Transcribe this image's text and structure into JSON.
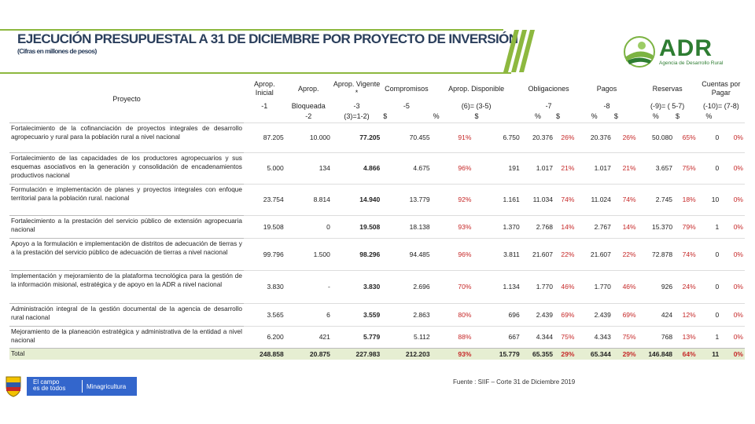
{
  "header": {
    "title": "EJECUCIÓN PRESUPUESTAL A 31 DE DICIEMBRE POR PROYECTO DE INVERSIÓN",
    "subtitle": "(Cifras en millones de pesos)"
  },
  "logo": {
    "name": "ADR",
    "tagline": "Agencia de Desarrollo Rural"
  },
  "columns": {
    "proyecto": "Proyecto",
    "aprop_inicial": "Aprop. Inicial",
    "aprop_bloq": "Aprop.",
    "aprop_vig": "Aprop. Vigente *",
    "compromisos": "Compromisos",
    "aprop_disp": "Aprop. Disponible",
    "obligaciones": "Obligaciones",
    "pagos": "Pagos",
    "reservas": "Reservas",
    "cuentas": "Cuentas por Pagar",
    "f_inicial": "-1",
    "f_bloq": "Bloqueada",
    "f_vig": "-3",
    "f_comp": "-5",
    "f_disp": "(6)= (3-5)",
    "f_oblig": "-7",
    "f_pagos": "-8",
    "f_res": "(-9)= ( 5-7)",
    "f_cxp": "(-10)= (7-8)",
    "f_bloq2": "-2",
    "f_vig2": "(3)=1-2)",
    "dollar": "$",
    "pct": "%"
  },
  "rows": [
    {
      "proyecto": "Fortalecimiento de la cofinanciación de proyectos integrales de desarrollo agropecuario y rural para la población rural a nivel nacional",
      "inicial": "87.205",
      "bloq": "10.000",
      "vig": "77.205",
      "comp": "70.455",
      "comp_pct": "91%",
      "disp": "6.750",
      "oblig": "20.376",
      "oblig_pct": "26%",
      "pagos": "20.376",
      "pagos_pct": "26%",
      "res": "50.080",
      "res_pct": "65%",
      "cxp": "0",
      "cxp_pct": "0%"
    },
    {
      "proyecto": "Fortalecimiento de las capacidades de los productores agropecuarios y sus esquemas asociativos en la generación y consolidación de encadenamientos productivos nacional",
      "inicial": "5.000",
      "bloq": "134",
      "vig": "4.866",
      "comp": "4.675",
      "comp_pct": "96%",
      "disp": "191",
      "oblig": "1.017",
      "oblig_pct": "21%",
      "pagos": "1.017",
      "pagos_pct": "21%",
      "res": "3.657",
      "res_pct": "75%",
      "cxp": "0",
      "cxp_pct": "0%"
    },
    {
      "proyecto": "Formulación e implementación de planes y proyectos integrales con enfoque territorial para la población rural. nacional",
      "inicial": "23.754",
      "bloq": "8.814",
      "vig": "14.940",
      "comp": "13.779",
      "comp_pct": "92%",
      "disp": "1.161",
      "oblig": "11.034",
      "oblig_pct": "74%",
      "pagos": "11.024",
      "pagos_pct": "74%",
      "res": "2.745",
      "res_pct": "18%",
      "cxp": "10",
      "cxp_pct": "0%"
    },
    {
      "proyecto": "Fortalecimiento a la prestación del servicio público de extensión agropecuaria nacional",
      "inicial": "19.508",
      "bloq": "0",
      "vig": "19.508",
      "comp": "18.138",
      "comp_pct": "93%",
      "disp": "1.370",
      "oblig": "2.768",
      "oblig_pct": "14%",
      "pagos": "2.767",
      "pagos_pct": "14%",
      "res": "15.370",
      "res_pct": "79%",
      "cxp": "1",
      "cxp_pct": "0%"
    },
    {
      "proyecto": "Apoyo a la formulación e implementación de distritos de adecuación de tierras y a la prestación del servicio público de adecuación de tierras a nivel nacional",
      "inicial": "99.796",
      "bloq": "1.500",
      "vig": "98.296",
      "comp": "94.485",
      "comp_pct": "96%",
      "disp": "3.811",
      "oblig": "21.607",
      "oblig_pct": "22%",
      "pagos": "21.607",
      "pagos_pct": "22%",
      "res": "72.878",
      "res_pct": "74%",
      "cxp": "0",
      "cxp_pct": "0%"
    },
    {
      "proyecto": "Implementación y mejoramiento de la plataforma tecnológica para la gestión de la información misional, estratégica y de apoyo en la ADR a nivel nacional",
      "inicial": "3.830",
      "bloq": "-",
      "vig": "3.830",
      "comp": "2.696",
      "comp_pct": "70%",
      "disp": "1.134",
      "oblig": "1.770",
      "oblig_pct": "46%",
      "pagos": "1.770",
      "pagos_pct": "46%",
      "res": "926",
      "res_pct": "24%",
      "cxp": "0",
      "cxp_pct": "0%"
    },
    {
      "proyecto": "Administración integral de la gestión documental de la agencia de desarrollo rural nacional",
      "inicial": "3.565",
      "bloq": "6",
      "vig": "3.559",
      "comp": "2.863",
      "comp_pct": "80%",
      "disp": "696",
      "oblig": "2.439",
      "oblig_pct": "69%",
      "pagos": "2.439",
      "pagos_pct": "69%",
      "res": "424",
      "res_pct": "12%",
      "cxp": "0",
      "cxp_pct": "0%"
    },
    {
      "proyecto": "Mejoramiento de la planeación estratégica y administrativa de la entidad a nivel nacional",
      "inicial": "6.200",
      "bloq": "421",
      "vig": "5.779",
      "comp": "5.112",
      "comp_pct": "88%",
      "disp": "667",
      "oblig": "4.344",
      "oblig_pct": "75%",
      "pagos": "4.343",
      "pagos_pct": "75%",
      "res": "768",
      "res_pct": "13%",
      "cxp": "1",
      "cxp_pct": "0%"
    }
  ],
  "total": {
    "proyecto": "Total",
    "inicial": "248.858",
    "bloq": "20.875",
    "vig": "227.983",
    "comp": "212.203",
    "comp_pct": "93%",
    "disp": "15.779",
    "oblig": "65.355",
    "oblig_pct": "29%",
    "pagos": "65.344",
    "pagos_pct": "29%",
    "res": "146.848",
    "res_pct": "64%",
    "cxp": "11",
    "cxp_pct": "0%"
  },
  "footer": {
    "campaign_line1": "El campo",
    "campaign_line2": "es de todos",
    "ministry": "Minagricultura",
    "fuente": "Fuente : SIIF – Corte 31 de Diciembre 2019"
  },
  "colors": {
    "title": "#2b3f5c",
    "accent_green": "#8db83f",
    "pct_red": "#c62828",
    "total_bg": "#e6eed2",
    "gov_blue": "#3366cc"
  }
}
